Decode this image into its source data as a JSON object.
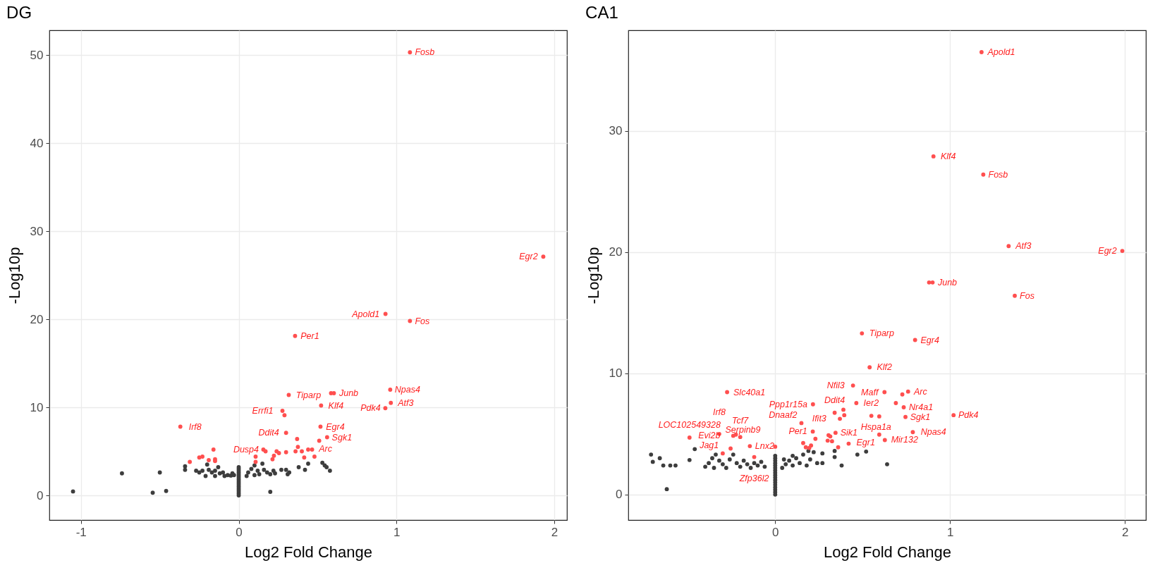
{
  "chart_data": [
    {
      "type": "scatter",
      "title": "DG",
      "xlabel": "Log2 Fold Change",
      "ylabel": "-Log10p",
      "xlim": [
        -1.2,
        2.08
      ],
      "ylim": [
        -2.8,
        52.8
      ],
      "xticks": [
        -1,
        0,
        1,
        2
      ],
      "yticks": [
        0,
        10,
        20,
        30,
        40,
        50
      ],
      "grid": true,
      "marker": "circle",
      "series": [
        {
          "color": "#3d3d3d",
          "x": [
            0,
            0,
            0,
            0,
            0,
            0,
            0,
            0,
            0,
            0,
            0,
            0,
            0,
            0,
            0,
            0,
            0,
            -1.05,
            -0.74,
            -0.5,
            -0.545,
            -0.46,
            -0.34,
            -0.34,
            -0.27,
            -0.25,
            -0.23,
            -0.2,
            -0.19,
            -0.17,
            -0.15,
            -0.13,
            -0.12,
            -0.1,
            -0.09,
            -0.07,
            -0.05,
            -0.03,
            -0.21,
            -0.15,
            -0.04,
            0.05,
            0.06,
            0.08,
            0.1,
            0.12,
            0.13,
            0.15,
            0.16,
            0.18,
            0.2,
            0.22,
            0.23,
            0.2,
            0.3,
            0.31,
            0.32,
            0.38,
            0.42,
            0.44,
            0.53,
            0.545,
            0.557,
            0.578,
            0.1,
            0.27
          ],
          "values": [
            0,
            0.2,
            0.4,
            0.6,
            0.8,
            1,
            1.2,
            1.4,
            1.6,
            1.8,
            2,
            2.2,
            2.4,
            2.6,
            2.8,
            3,
            3.2,
            0.45,
            2.5,
            2.6,
            0.3,
            0.5,
            3.3,
            2.9,
            2.8,
            2.6,
            2.8,
            3.5,
            2.9,
            2.6,
            2.8,
            3.2,
            2.5,
            2.6,
            2.2,
            2.3,
            2.25,
            2.3,
            2.2,
            2.2,
            2.5,
            2.2,
            2.6,
            3,
            3.4,
            2.8,
            2.4,
            3.6,
            2.9,
            2.6,
            2.4,
            2.8,
            2.5,
            0.4,
            2.9,
            2.4,
            2.6,
            3.2,
            2.9,
            3.6,
            3.7,
            3.4,
            3.2,
            2.8,
            2.3,
            2.9
          ]
        },
        {
          "color": "#ff4f4f",
          "x": [
            1.085,
            1.93,
            0.93,
            1.085,
            0.357,
            0.317,
            0.585,
            0.603,
            0.96,
            0.964,
            0.929,
            0.522,
            0.277,
            0.29,
            -0.37,
            0.518,
            0.3,
            0.56,
            0.156,
            0.48,
            0.51,
            0.37,
            0.375,
            0.17,
            0.24,
            0.255,
            0.3,
            0.36,
            0.4,
            0.44,
            0.465,
            0.415,
            0.223,
            0.214,
            0.107,
            0.107,
            -0.31,
            -0.25,
            -0.23,
            -0.16,
            -0.19,
            -0.15,
            -0.15
          ],
          "values": [
            50.3,
            27.1,
            20.6,
            19.8,
            18.1,
            11.4,
            11.6,
            11.6,
            12,
            10.5,
            9.9,
            10.2,
            9.6,
            9.1,
            7.8,
            7.8,
            7.1,
            6.6,
            5.2,
            4.4,
            6.2,
            6.4,
            5.5,
            5,
            5,
            4.8,
            4.9,
            5,
            5,
            5.2,
            5.2,
            4.3,
            4.5,
            4.1,
            4.4,
            3.8,
            3.8,
            4.3,
            4.4,
            5.2,
            4,
            4.1,
            3.9
          ]
        }
      ],
      "annotations": [
        {
          "text": "Fosb",
          "x": 1.085,
          "y": 50.3
        },
        {
          "text": "Tiparp",
          "x": 0.317,
          "y": 11.4
        },
        {
          "text": "Apold1",
          "x": 0.93,
          "y": 20.6
        },
        {
          "text": "Egr2",
          "x": 1.93,
          "y": 27.1
        },
        {
          "text": "Atf3",
          "x": 0.964,
          "y": 10.5
        },
        {
          "text": "Npas4",
          "x": 0.96,
          "y": 12
        },
        {
          "text": "Junb",
          "x": 0.603,
          "y": 11.6
        },
        {
          "text": "Fos",
          "x": 1.085,
          "y": 19.8
        },
        {
          "text": "Per1",
          "x": 0.357,
          "y": 18.1
        },
        {
          "text": "Pdk4",
          "x": 0.929,
          "y": 9.9
        },
        {
          "text": "Ddit4",
          "x": 0.3,
          "y": 7.1
        },
        {
          "text": "Irf8",
          "x": -0.37,
          "y": 7.8
        },
        {
          "text": "Egr4",
          "x": 0.518,
          "y": 7.8
        },
        {
          "text": "Klf4",
          "x": 0.522,
          "y": 10.2
        },
        {
          "text": "Dusp4",
          "x": 0.156,
          "y": 5.2
        },
        {
          "text": "Arc",
          "x": 0.48,
          "y": 4.4
        },
        {
          "text": "Sgk1",
          "x": 0.56,
          "y": 6.6
        },
        {
          "text": "Errfi1",
          "x": 0.277,
          "y": 9.6
        }
      ]
    },
    {
      "type": "scatter",
      "title": "CA1",
      "xlabel": "Log2 Fold Change",
      "ylabel": "-Log10p",
      "xlim": [
        -0.84,
        2.12
      ],
      "ylim": [
        -2.1,
        38.3
      ],
      "xticks": [
        0,
        1,
        2
      ],
      "yticks": [
        0,
        10,
        20,
        30
      ],
      "grid": true,
      "marker": "circle",
      "series": [
        {
          "color": "#3d3d3d",
          "x": [
            0,
            0,
            0,
            0,
            0,
            0,
            0,
            0,
            0,
            0,
            0,
            0,
            0,
            0,
            0,
            0,
            0,
            -0.71,
            -0.7,
            -0.66,
            -0.64,
            -0.6,
            -0.57,
            -0.49,
            -0.46,
            -0.62,
            -0.4,
            -0.38,
            -0.36,
            -0.34,
            -0.32,
            -0.3,
            -0.28,
            -0.26,
            -0.24,
            -0.22,
            -0.2,
            -0.18,
            -0.16,
            -0.14,
            -0.12,
            -0.1,
            -0.08,
            -0.06,
            -0.35,
            0.04,
            0.06,
            0.08,
            0.1,
            0.12,
            0.14,
            0.16,
            0.18,
            0.2,
            0.22,
            0.24,
            0.27,
            0.27,
            0.34,
            0.34,
            0.38,
            0.47,
            0.52,
            0.64,
            0.05,
            0.19,
            0.1
          ],
          "values": [
            0,
            0.2,
            0.4,
            0.6,
            0.8,
            1,
            1.2,
            1.4,
            1.6,
            1.8,
            2,
            2.2,
            2.4,
            2.6,
            2.8,
            3,
            3.2,
            3.3,
            2.7,
            3,
            2.4,
            2.4,
            2.4,
            2.85,
            3.75,
            0.45,
            2.3,
            2.6,
            3,
            3.3,
            2.8,
            2.5,
            2.2,
            2.9,
            3.3,
            2.6,
            2.3,
            2.8,
            2.5,
            2.2,
            2.6,
            2.4,
            2.7,
            2.3,
            2.2,
            2.2,
            2.5,
            2.8,
            2.4,
            3,
            2.6,
            3.3,
            2.4,
            2.9,
            3.5,
            2.6,
            3.4,
            2.6,
            3.6,
            3.1,
            2.4,
            3.3,
            3.55,
            2.5,
            2.9,
            3.6,
            3.2
          ]
        },
        {
          "color": "#ff4f4f",
          "x": [
            1.18,
            0.905,
            1.19,
            1.985,
            1.335,
            0.9,
            0.88,
            1.37,
            0.496,
            0.8,
            0.54,
            0.445,
            0.625,
            0.76,
            0.727,
            0.464,
            0.69,
            0.735,
            -0.275,
            0.216,
            0.34,
            0.39,
            0.395,
            0.55,
            0.595,
            0.745,
            1.02,
            0.15,
            0.215,
            0.37,
            0.345,
            0.595,
            0.305,
            0.315,
            0.3,
            0.325,
            0.23,
            0.16,
            0.175,
            0.195,
            0.205,
            0.42,
            0.36,
            0.627,
            0.787,
            0,
            -0.145,
            -0.32,
            -0.24,
            -0.225,
            -0.2,
            -0.49,
            -0.255,
            -0.3,
            -0.12
          ],
          "values": [
            36.5,
            27.9,
            26.4,
            20.1,
            20.5,
            17.5,
            17.5,
            16.4,
            13.3,
            12.75,
            10.5,
            9,
            8.45,
            8.5,
            8.26,
            7.55,
            7.55,
            7.2,
            8.45,
            7.45,
            6.75,
            7,
            6.55,
            6.5,
            6.45,
            6.4,
            6.55,
            5.9,
            5.2,
            6.25,
            5.1,
            4.95,
            4.9,
            4.8,
            4.45,
            4.4,
            4.6,
            4.25,
            3.9,
            3.85,
            4.05,
            4.2,
            3.9,
            4.5,
            5.15,
            3.95,
            4,
            5,
            4.85,
            4.95,
            4.75,
            4.7,
            3.8,
            3.4,
            3.1
          ]
        }
      ],
      "annotations": [
        {
          "text": "Fosb",
          "x": 1.19,
          "y": 26.4
        },
        {
          "text": "Klf4",
          "x": 0.905,
          "y": 27.9
        },
        {
          "text": "Egr2",
          "x": 1.985,
          "y": 20.1
        },
        {
          "text": "Apold1",
          "x": 1.18,
          "y": 36.5
        },
        {
          "text": "Atf3",
          "x": 1.335,
          "y": 20.5
        },
        {
          "text": "Tiparp",
          "x": 0.496,
          "y": 13.3
        },
        {
          "text": "Fos",
          "x": 1.37,
          "y": 16.4
        },
        {
          "text": "Klf2",
          "x": 0.54,
          "y": 10.5
        },
        {
          "text": "Junb",
          "x": 0.9,
          "y": 17.5
        },
        {
          "text": "Nfil3",
          "x": 0.445,
          "y": 9
        },
        {
          "text": "Egr4",
          "x": 0.8,
          "y": 12.75
        },
        {
          "text": "Hspa1a",
          "x": 0.42,
          "y": 4.2
        },
        {
          "text": "Arc",
          "x": 0.76,
          "y": 8.5
        },
        {
          "text": "Ier2",
          "x": 0.464,
          "y": 7.55
        },
        {
          "text": "Maff",
          "x": 0.625,
          "y": 8.45
        },
        {
          "text": "Ifit3",
          "x": 0.37,
          "y": 6.25
        },
        {
          "text": "Nr4a1",
          "x": 0.735,
          "y": 7.2
        },
        {
          "text": "Ppp1r15a",
          "x": 0.216,
          "y": 7.45
        },
        {
          "text": "Ddit4",
          "x": 0.34,
          "y": 6.75
        },
        {
          "text": "Mir132",
          "x": 0.627,
          "y": 4.5
        },
        {
          "text": "Sgk1",
          "x": 0.745,
          "y": 6.4
        },
        {
          "text": "Egr1",
          "x": 0.595,
          "y": 4.95
        },
        {
          "text": "Sik1",
          "x": 0.55,
          "y": 6.5
        },
        {
          "text": "LOC102549328",
          "x": -0.49,
          "y": 4.7
        },
        {
          "text": "Pdk4",
          "x": 1.02,
          "y": 6.55
        },
        {
          "text": "Per1",
          "x": 0.215,
          "y": 5.2
        },
        {
          "text": "Slc40a1",
          "x": -0.275,
          "y": 8.45
        },
        {
          "text": "Jag1",
          "x": -0.3,
          "y": 3.4
        },
        {
          "text": "Npas4",
          "x": 0.787,
          "y": 5.15
        },
        {
          "text": "Dnaaf2",
          "x": 0.15,
          "y": 5.9
        },
        {
          "text": "Serpinb9",
          "x": 0,
          "y": 3.95
        },
        {
          "text": "Zfp36l2",
          "x": -0.12,
          "y": 3.1
        },
        {
          "text": "Tcf7",
          "x": -0.2,
          "y": 4.75
        },
        {
          "text": "Irf8",
          "x": -0.32,
          "y": 5
        },
        {
          "text": "Lnx2",
          "x": -0.145,
          "y": 4
        },
        {
          "text": "Evi2b",
          "x": -0.255,
          "y": 3.8
        }
      ]
    }
  ]
}
